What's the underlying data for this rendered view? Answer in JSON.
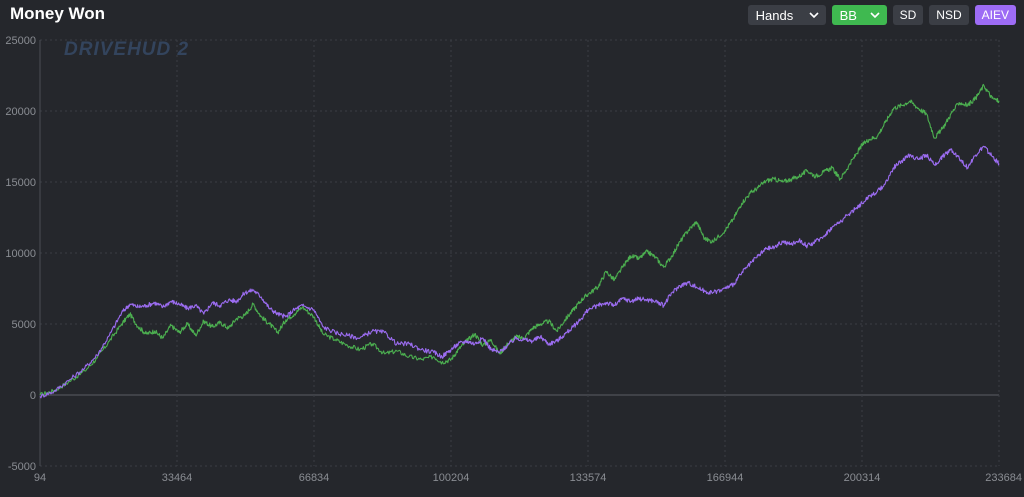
{
  "header": {
    "title": "Money Won",
    "hands_select": "Hands",
    "unit_select": "BB",
    "toggles": [
      "SD",
      "NSD",
      "AIEV"
    ],
    "active_toggle": "AIEV"
  },
  "watermark": "DRIVEHUD 2",
  "colors": {
    "background": "#25272c",
    "green_series": "#4caf50",
    "purple_series": "#9b6cf0",
    "accent_green": "#3fb950",
    "accent_purple": "#9d6cf5"
  },
  "chart_data": {
    "type": "line",
    "title": "Money Won",
    "xlabel": "",
    "ylabel": "",
    "xlim": [
      94,
      233684
    ],
    "ylim": [
      -5000,
      25000
    ],
    "x_ticks": [
      "94",
      "33464",
      "66834",
      "100204",
      "133574",
      "166944",
      "200314",
      "233684"
    ],
    "y_ticks": [
      "25000",
      "20000",
      "15000",
      "10000",
      "5000",
      "0",
      "-5000"
    ],
    "grid": true,
    "series": [
      {
        "name": "",
        "color": "#4caf50",
        "points": [
          [
            94,
            0
          ],
          [
            3500,
            300
          ],
          [
            7000,
            900
          ],
          [
            11000,
            1700
          ],
          [
            14000,
            2600
          ],
          [
            17000,
            3800
          ],
          [
            20000,
            5000
          ],
          [
            22000,
            5700
          ],
          [
            24000,
            4800
          ],
          [
            26000,
            4300
          ],
          [
            28000,
            4500
          ],
          [
            30000,
            4000
          ],
          [
            32000,
            4900
          ],
          [
            34000,
            4400
          ],
          [
            36000,
            5000
          ],
          [
            38000,
            4200
          ],
          [
            40000,
            5200
          ],
          [
            42000,
            4800
          ],
          [
            44000,
            5100
          ],
          [
            46000,
            4700
          ],
          [
            48000,
            5400
          ],
          [
            50000,
            5600
          ],
          [
            52000,
            6400
          ],
          [
            54000,
            5500
          ],
          [
            56000,
            5000
          ],
          [
            58000,
            4400
          ],
          [
            60000,
            5300
          ],
          [
            62000,
            5700
          ],
          [
            64000,
            6200
          ],
          [
            66834,
            5500
          ],
          [
            69000,
            4300
          ],
          [
            72000,
            3900
          ],
          [
            75000,
            3500
          ],
          [
            78000,
            3200
          ],
          [
            81000,
            3600
          ],
          [
            84000,
            2900
          ],
          [
            87000,
            3100
          ],
          [
            90000,
            2700
          ],
          [
            93000,
            2500
          ],
          [
            96000,
            2700
          ],
          [
            98000,
            2300
          ],
          [
            100204,
            2500
          ],
          [
            102000,
            3200
          ],
          [
            104000,
            3800
          ],
          [
            106000,
            4300
          ],
          [
            108000,
            3500
          ],
          [
            110000,
            3900
          ],
          [
            112000,
            2900
          ],
          [
            114000,
            3600
          ],
          [
            116000,
            4100
          ],
          [
            118000,
            4000
          ],
          [
            120000,
            4700
          ],
          [
            122000,
            5000
          ],
          [
            124000,
            5200
          ],
          [
            126000,
            4500
          ],
          [
            128000,
            5300
          ],
          [
            130000,
            6000
          ],
          [
            132000,
            6700
          ],
          [
            133574,
            7100
          ],
          [
            136000,
            7600
          ],
          [
            138000,
            8700
          ],
          [
            140000,
            8100
          ],
          [
            142000,
            9000
          ],
          [
            144000,
            9800
          ],
          [
            146000,
            9600
          ],
          [
            148000,
            10100
          ],
          [
            150000,
            9700
          ],
          [
            152000,
            9000
          ],
          [
            154000,
            9800
          ],
          [
            156000,
            10800
          ],
          [
            158000,
            11600
          ],
          [
            160000,
            12200
          ],
          [
            162000,
            11000
          ],
          [
            164000,
            10800
          ],
          [
            166944,
            11600
          ],
          [
            169000,
            12400
          ],
          [
            171000,
            13500
          ],
          [
            173000,
            14200
          ],
          [
            175000,
            14600
          ],
          [
            177000,
            15100
          ],
          [
            179000,
            15200
          ],
          [
            181000,
            15000
          ],
          [
            183000,
            15200
          ],
          [
            185000,
            15400
          ],
          [
            187000,
            15800
          ],
          [
            189000,
            15400
          ],
          [
            191000,
            15700
          ],
          [
            193000,
            16000
          ],
          [
            195000,
            15200
          ],
          [
            197000,
            16100
          ],
          [
            199000,
            17000
          ],
          [
            200314,
            17600
          ],
          [
            202000,
            18000
          ],
          [
            204000,
            18200
          ],
          [
            206000,
            19200
          ],
          [
            208000,
            20200
          ],
          [
            210000,
            20400
          ],
          [
            212000,
            20700
          ],
          [
            214000,
            20200
          ],
          [
            216000,
            19800
          ],
          [
            218000,
            18100
          ],
          [
            220000,
            18800
          ],
          [
            222000,
            19800
          ],
          [
            224000,
            20600
          ],
          [
            226000,
            20400
          ],
          [
            228000,
            20900
          ],
          [
            230000,
            21800
          ],
          [
            232000,
            20900
          ],
          [
            233684,
            20700
          ]
        ]
      },
      {
        "name": "",
        "color": "#9b6cf0",
        "points": [
          [
            94,
            -100
          ],
          [
            3500,
            250
          ],
          [
            7000,
            1000
          ],
          [
            11000,
            1900
          ],
          [
            14000,
            2800
          ],
          [
            17000,
            4200
          ],
          [
            20000,
            5800
          ],
          [
            22000,
            6400
          ],
          [
            24000,
            6200
          ],
          [
            26000,
            6300
          ],
          [
            28000,
            6500
          ],
          [
            30000,
            6200
          ],
          [
            32000,
            6600
          ],
          [
            34000,
            6400
          ],
          [
            36000,
            6100
          ],
          [
            38000,
            6300
          ],
          [
            40000,
            5700
          ],
          [
            42000,
            6500
          ],
          [
            44000,
            6300
          ],
          [
            46000,
            6700
          ],
          [
            48000,
            6600
          ],
          [
            50000,
            7200
          ],
          [
            52000,
            7400
          ],
          [
            54000,
            6900
          ],
          [
            56000,
            6100
          ],
          [
            58000,
            5700
          ],
          [
            60000,
            5500
          ],
          [
            62000,
            6000
          ],
          [
            64000,
            6300
          ],
          [
            66834,
            6000
          ],
          [
            69000,
            4800
          ],
          [
            72000,
            4400
          ],
          [
            75000,
            4200
          ],
          [
            78000,
            4000
          ],
          [
            81000,
            4500
          ],
          [
            84000,
            4400
          ],
          [
            87000,
            3600
          ],
          [
            90000,
            3600
          ],
          [
            93000,
            3200
          ],
          [
            96000,
            3000
          ],
          [
            98000,
            2700
          ],
          [
            100204,
            3200
          ],
          [
            102000,
            3600
          ],
          [
            104000,
            3800
          ],
          [
            106000,
            3600
          ],
          [
            108000,
            4000
          ],
          [
            110000,
            3200
          ],
          [
            112000,
            3000
          ],
          [
            114000,
            3500
          ],
          [
            116000,
            4000
          ],
          [
            118000,
            3900
          ],
          [
            120000,
            3800
          ],
          [
            122000,
            4100
          ],
          [
            124000,
            3600
          ],
          [
            126000,
            3800
          ],
          [
            128000,
            4300
          ],
          [
            130000,
            4800
          ],
          [
            132000,
            5400
          ],
          [
            133574,
            6000
          ],
          [
            136000,
            6300
          ],
          [
            138000,
            6500
          ],
          [
            140000,
            6300
          ],
          [
            142000,
            6800
          ],
          [
            144000,
            6600
          ],
          [
            146000,
            6800
          ],
          [
            148000,
            6700
          ],
          [
            150000,
            6600
          ],
          [
            152000,
            6300
          ],
          [
            154000,
            7200
          ],
          [
            156000,
            7700
          ],
          [
            158000,
            7900
          ],
          [
            160000,
            7600
          ],
          [
            162000,
            7300
          ],
          [
            164000,
            7200
          ],
          [
            166944,
            7500
          ],
          [
            169000,
            7800
          ],
          [
            171000,
            8600
          ],
          [
            173000,
            9200
          ],
          [
            175000,
            9800
          ],
          [
            177000,
            10300
          ],
          [
            179000,
            10400
          ],
          [
            181000,
            10800
          ],
          [
            183000,
            10600
          ],
          [
            185000,
            10900
          ],
          [
            187000,
            10500
          ],
          [
            189000,
            10800
          ],
          [
            191000,
            11200
          ],
          [
            193000,
            11800
          ],
          [
            195000,
            12200
          ],
          [
            197000,
            12700
          ],
          [
            199000,
            13200
          ],
          [
            200314,
            13500
          ],
          [
            202000,
            14000
          ],
          [
            204000,
            14300
          ],
          [
            206000,
            14900
          ],
          [
            208000,
            16000
          ],
          [
            210000,
            16500
          ],
          [
            212000,
            16900
          ],
          [
            214000,
            16600
          ],
          [
            216000,
            16900
          ],
          [
            218000,
            16200
          ],
          [
            220000,
            16800
          ],
          [
            222000,
            17300
          ],
          [
            224000,
            16700
          ],
          [
            226000,
            16000
          ],
          [
            228000,
            16900
          ],
          [
            230000,
            17500
          ],
          [
            232000,
            16800
          ],
          [
            233684,
            16300
          ]
        ]
      }
    ]
  }
}
